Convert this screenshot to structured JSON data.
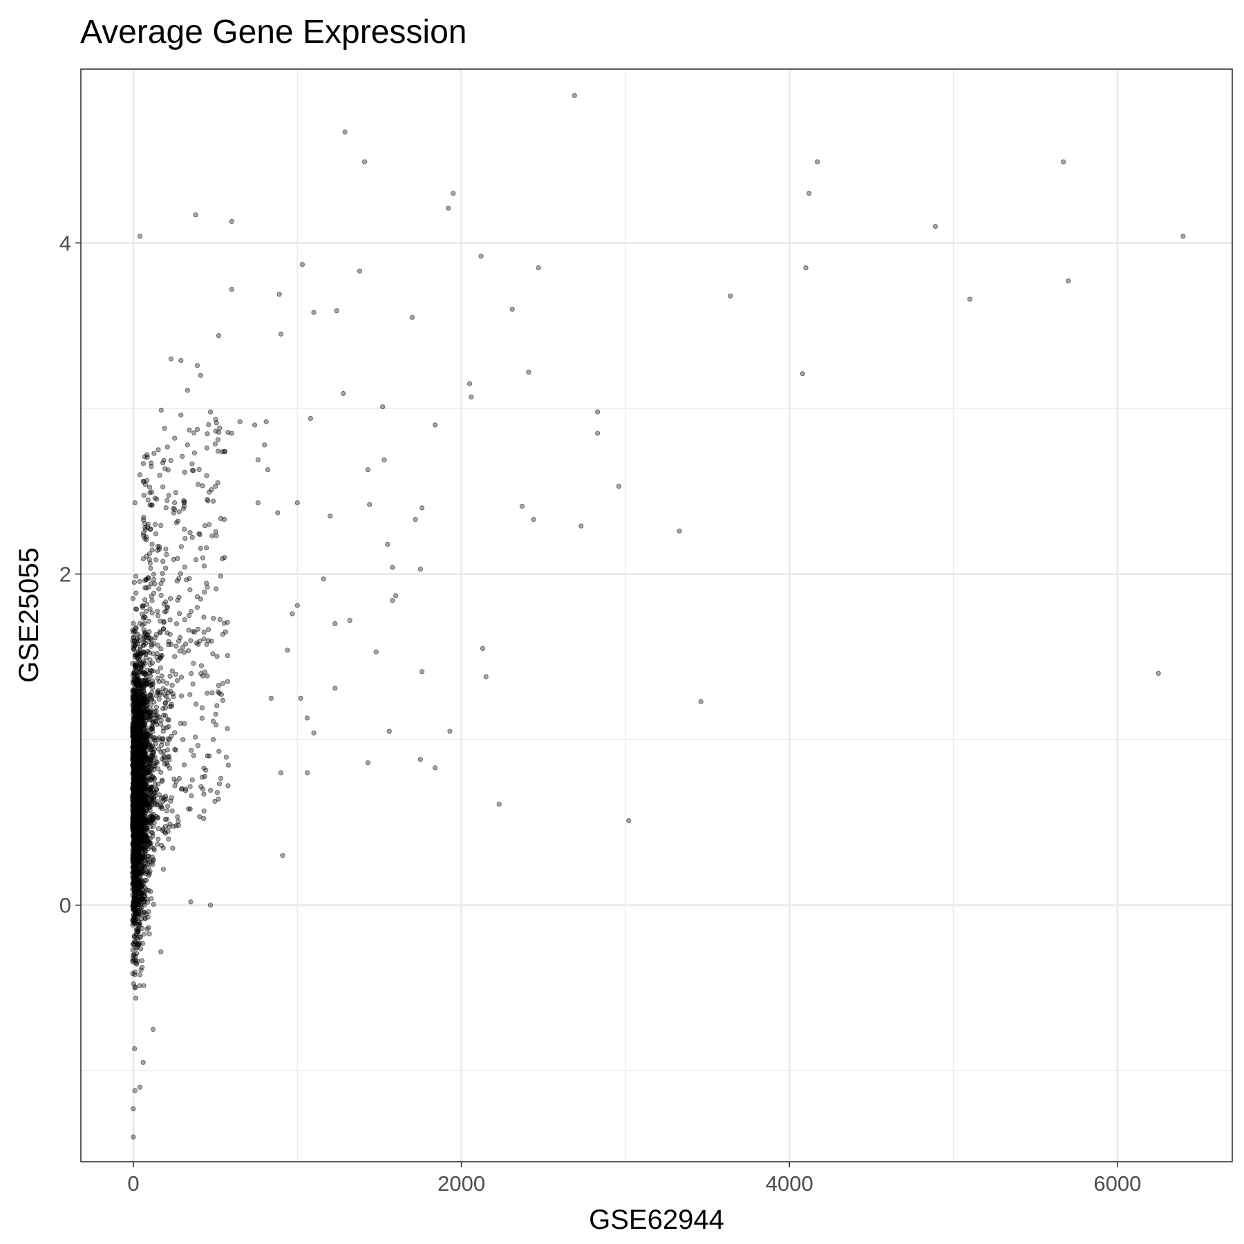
{
  "chart_data": {
    "type": "scatter",
    "title": "Average Gene Expression",
    "xlabel": "GSE62944",
    "ylabel": "GSE25055",
    "xlim": [
      -320,
      6700
    ],
    "ylim": [
      -1.55,
      5.05
    ],
    "x_ticks": [
      0,
      2000,
      4000,
      6000
    ],
    "x_tick_labels": [
      "0",
      "2000",
      "4000",
      "6000"
    ],
    "y_ticks": [
      0,
      2,
      4
    ],
    "y_tick_labels": [
      "0",
      "2",
      "4"
    ],
    "x_minor_ticks": [
      1000,
      3000,
      5000
    ],
    "y_minor_ticks": [
      -1,
      1,
      3
    ],
    "grid": true,
    "legend": "none",
    "point_color": "#000000",
    "point_opacity": 0.35,
    "series": [
      {
        "points": [
          [
            2690,
            4.89
          ],
          [
            1290,
            4.67
          ],
          [
            1410,
            4.49
          ],
          [
            4170,
            4.49
          ],
          [
            5670,
            4.49
          ],
          [
            1950,
            4.3
          ],
          [
            4120,
            4.3
          ],
          [
            1920,
            4.21
          ],
          [
            380,
            4.17
          ],
          [
            600,
            4.13
          ],
          [
            4890,
            4.1
          ],
          [
            40,
            4.04
          ],
          [
            6400,
            4.04
          ],
          [
            2120,
            3.92
          ],
          [
            1030,
            3.87
          ],
          [
            2470,
            3.85
          ],
          [
            1380,
            3.83
          ],
          [
            4100,
            3.85
          ],
          [
            5700,
            3.77
          ],
          [
            600,
            3.72
          ],
          [
            890,
            3.69
          ],
          [
            3640,
            3.68
          ],
          [
            5100,
            3.66
          ],
          [
            1240,
            3.59
          ],
          [
            1100,
            3.58
          ],
          [
            2310,
            3.6
          ],
          [
            1700,
            3.55
          ],
          [
            520,
            3.44
          ],
          [
            900,
            3.45
          ],
          [
            230,
            3.3
          ],
          [
            290,
            3.29
          ],
          [
            390,
            3.26
          ],
          [
            410,
            3.2
          ],
          [
            2410,
            3.22
          ],
          [
            4080,
            3.21
          ],
          [
            2050,
            3.15
          ],
          [
            2060,
            3.07
          ],
          [
            330,
            3.11
          ],
          [
            1280,
            3.09
          ],
          [
            170,
            2.99
          ],
          [
            290,
            2.96
          ],
          [
            470,
            2.98
          ],
          [
            1520,
            3.01
          ],
          [
            2830,
            2.98
          ],
          [
            1080,
            2.94
          ],
          [
            650,
            2.92
          ],
          [
            810,
            2.92
          ],
          [
            740,
            2.9
          ],
          [
            1840,
            2.9
          ],
          [
            190,
            2.88
          ],
          [
            2830,
            2.85
          ],
          [
            600,
            2.85
          ],
          [
            800,
            2.78
          ],
          [
            330,
            2.78
          ],
          [
            1430,
            2.63
          ],
          [
            1530,
            2.69
          ],
          [
            110,
            2.65
          ],
          [
            760,
            2.69
          ],
          [
            820,
            2.63
          ],
          [
            40,
            2.6
          ],
          [
            2960,
            2.53
          ],
          [
            500,
            2.53
          ],
          [
            760,
            2.43
          ],
          [
            10,
            2.43
          ],
          [
            2370,
            2.41
          ],
          [
            1440,
            2.42
          ],
          [
            1760,
            2.4
          ],
          [
            1720,
            2.33
          ],
          [
            2440,
            2.33
          ],
          [
            1200,
            2.35
          ],
          [
            3330,
            2.26
          ],
          [
            2730,
            2.29
          ],
          [
            70,
            2.28
          ],
          [
            1000,
            2.43
          ],
          [
            880,
            2.37
          ],
          [
            1550,
            2.18
          ],
          [
            1580,
            2.04
          ],
          [
            1750,
            2.03
          ],
          [
            1160,
            1.97
          ],
          [
            1600,
            1.87
          ],
          [
            1580,
            1.84
          ],
          [
            1000,
            1.81
          ],
          [
            970,
            1.76
          ],
          [
            1320,
            1.72
          ],
          [
            1230,
            1.7
          ],
          [
            2130,
            1.55
          ],
          [
            1480,
            1.53
          ],
          [
            940,
            1.54
          ],
          [
            2150,
            1.38
          ],
          [
            6250,
            1.4
          ],
          [
            1760,
            1.41
          ],
          [
            1230,
            1.31
          ],
          [
            3460,
            1.23
          ],
          [
            1020,
            1.25
          ],
          [
            840,
            1.25
          ],
          [
            1060,
            1.13
          ],
          [
            1100,
            1.04
          ],
          [
            1560,
            1.05
          ],
          [
            1930,
            1.05
          ],
          [
            1750,
            0.88
          ],
          [
            1840,
            0.83
          ],
          [
            1430,
            0.86
          ],
          [
            1060,
            0.8
          ],
          [
            900,
            0.8
          ],
          [
            2230,
            0.61
          ],
          [
            3020,
            0.51
          ],
          [
            910,
            0.3
          ],
          [
            350,
            0.02
          ],
          [
            470,
            0.0
          ],
          [
            10,
            -1.12
          ],
          [
            40,
            -1.1
          ],
          [
            0,
            -1.4
          ],
          [
            0,
            -1.23
          ],
          [
            60,
            -0.95
          ],
          [
            120,
            -0.75
          ]
        ]
      }
    ],
    "dense_cluster": {
      "note_from_image": "",
      "x_range": [
        -20,
        260
      ],
      "y_range": [
        -0.95,
        2.3
      ]
    }
  }
}
